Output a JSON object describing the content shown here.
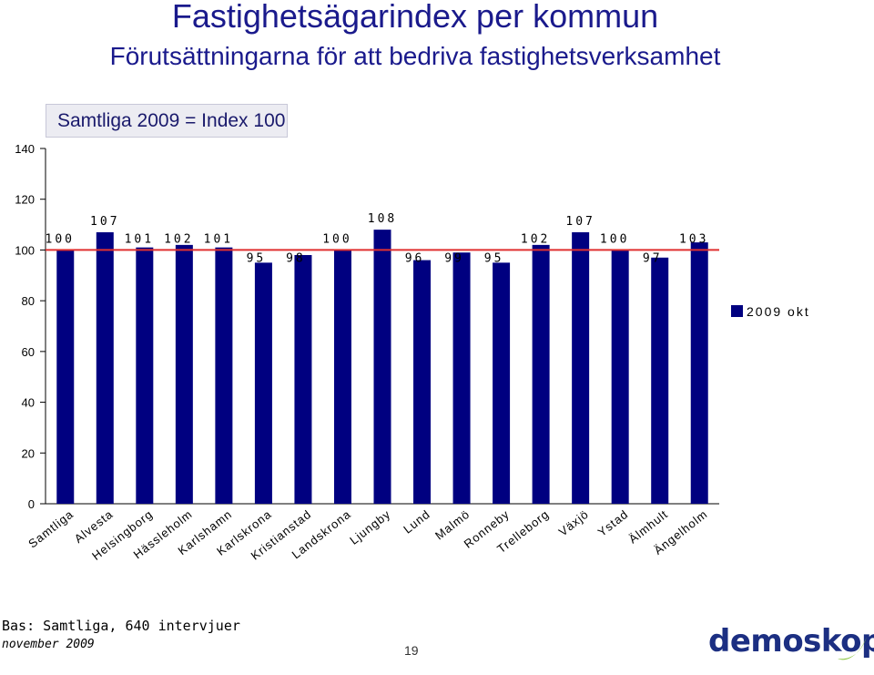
{
  "header": {
    "title": "Fastighetsägarindex per kommun",
    "subtitle": "Förutsättningarna för att bedriva fastighetsverksamhet",
    "index_note": "Samtliga 2009 = Index 100"
  },
  "chart_data": {
    "type": "bar",
    "categories": [
      "Samtliga",
      "Alvesta",
      "Helsingborg",
      "Hässleholm",
      "Karlshamn",
      "Karlskrona",
      "Kristianstad",
      "Landskrona",
      "Ljungby",
      "Lund",
      "Malmö",
      "Ronneby",
      "Trelleborg",
      "Växjö",
      "Ystad",
      "Älmhult",
      "Ängelholm"
    ],
    "series": [
      {
        "name": "2009 okt",
        "values": [
          100,
          107,
          101,
          102,
          101,
          95,
          98,
          100,
          108,
          96,
          99,
          95,
          102,
          107,
          100,
          97,
          103
        ],
        "color": "#000080"
      }
    ],
    "data_labels": [
      "100",
      "107",
      "101",
      "102",
      "101",
      "95",
      "98",
      "100",
      "108",
      "96",
      "99",
      "95",
      "102",
      "107",
      "100",
      "97",
      "103"
    ],
    "ylim": [
      0,
      140
    ],
    "yticks": [
      "0",
      "20",
      "40",
      "60",
      "80",
      "100",
      "120",
      "140"
    ],
    "reference_line": {
      "value": 100,
      "color": "#e03030"
    },
    "legend_position": "right",
    "grid": false
  },
  "footer": {
    "bas": "Bas: Samtliga, 640 intervjuer",
    "date": "november 2009",
    "page_number": "19",
    "logo_text": "demoskop"
  },
  "colors": {
    "title": "#1a1a8c",
    "bar": "#000080",
    "reference": "#e03030",
    "logo": "#1c2f82"
  }
}
